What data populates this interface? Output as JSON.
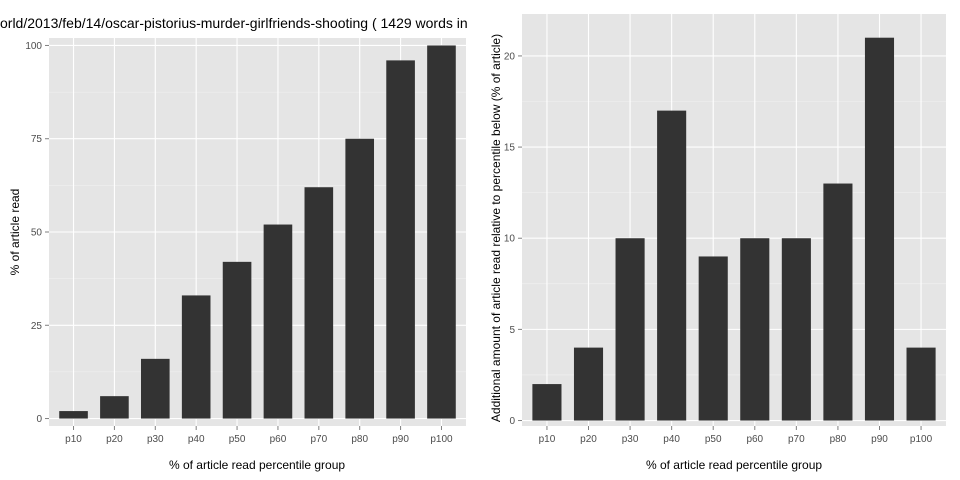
{
  "chart_data": [
    {
      "type": "bar",
      "title": "orld/2013/feb/14/oscar-pistorius-murder-girlfriends-shooting ( 1429 words in",
      "xlabel": "% of article read percentile group",
      "ylabel": "% of article read",
      "categories": [
        "p10",
        "p20",
        "p30",
        "p40",
        "p50",
        "p60",
        "p70",
        "p80",
        "p90",
        "p100"
      ],
      "values": [
        2,
        6,
        16,
        33,
        42,
        52,
        62,
        75,
        96,
        100
      ],
      "ylim": [
        -2,
        102
      ],
      "yticks": [
        0,
        25,
        50,
        75,
        100
      ],
      "ytick_labels": [
        "0",
        "25",
        "50",
        "75",
        "100"
      ],
      "grid": true,
      "bar_color": "#333333",
      "panel_color": "#e5e5e5"
    },
    {
      "type": "bar",
      "title": "",
      "xlabel": "% of article read percentile group",
      "ylabel": "Additional amount of article read relative to percentile below (% of article)",
      "categories": [
        "p10",
        "p20",
        "p30",
        "p40",
        "p50",
        "p60",
        "p70",
        "p80",
        "p90",
        "p100"
      ],
      "values": [
        2,
        4,
        10,
        17,
        9,
        10,
        10,
        13,
        21,
        4
      ],
      "ylim": [
        -0.3,
        22.3
      ],
      "yticks": [
        0,
        5,
        10,
        15,
        20
      ],
      "ytick_labels": [
        "0",
        "5",
        "10",
        "15",
        "20"
      ],
      "grid": true,
      "bar_color": "#333333",
      "panel_color": "#e5e5e5"
    }
  ]
}
